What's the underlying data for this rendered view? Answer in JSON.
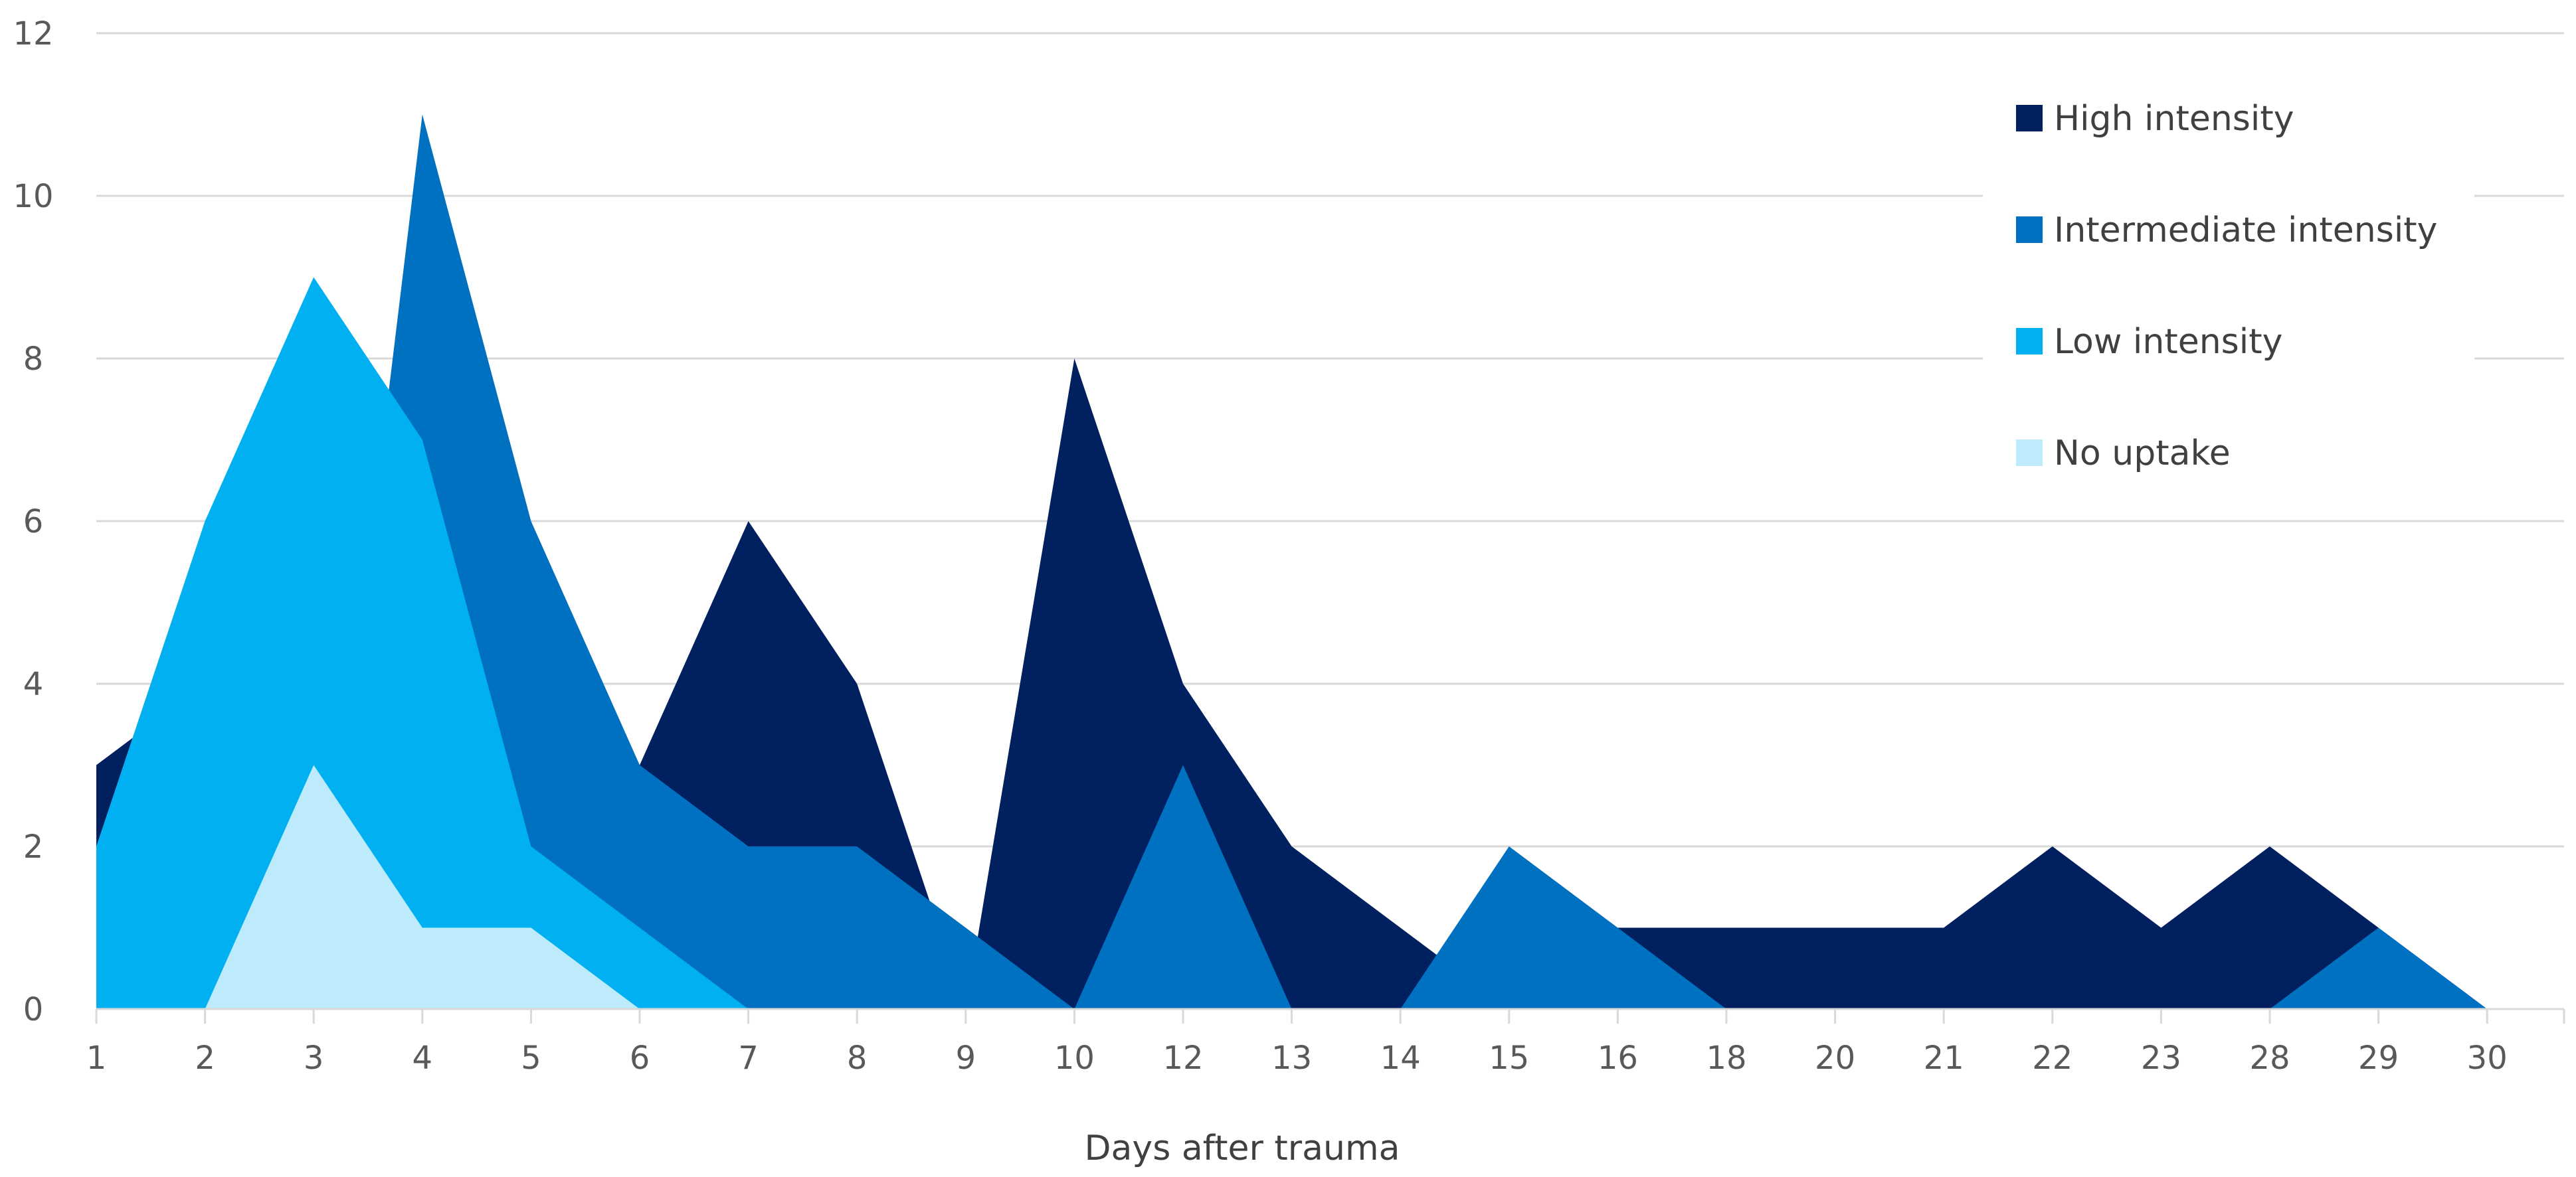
{
  "chart_data": {
    "type": "area",
    "title": "",
    "xlabel": "Days after trauma",
    "ylabel": "",
    "ylim": [
      0,
      12
    ],
    "yticks": [
      "0",
      "2",
      "4",
      "6",
      "8",
      "10",
      "12"
    ],
    "categories": [
      "1",
      "2",
      "3",
      "4",
      "5",
      "6",
      "7",
      "8",
      "9",
      "10",
      "12",
      "13",
      "14",
      "15",
      "16",
      "18",
      "20",
      "21",
      "22",
      "23",
      "28",
      "29",
      "30"
    ],
    "grid": true,
    "legend_position": "top-right",
    "series": [
      {
        "name": "High intensity",
        "color": "#002060",
        "values": [
          3,
          4,
          0,
          0,
          0,
          3,
          6,
          4,
          0,
          8,
          4,
          2,
          1,
          0,
          1,
          1,
          1,
          1,
          2,
          1,
          2,
          1,
          0
        ]
      },
      {
        "name": "Intermediate intensity",
        "color": "#0070C0",
        "values": [
          0,
          0,
          0,
          11,
          6,
          3,
          2,
          2,
          1,
          0,
          3,
          0,
          0,
          2,
          1,
          0,
          0,
          0,
          0,
          0,
          0,
          1,
          0
        ]
      },
      {
        "name": "Low intensity",
        "color": "#00B0F0",
        "values": [
          2,
          6,
          9,
          7,
          2,
          1,
          0,
          0,
          0,
          0,
          0,
          0,
          0,
          0,
          0,
          0,
          0,
          0,
          0,
          0,
          0,
          0,
          0
        ]
      },
      {
        "name": "No uptake",
        "color": "#BDEBFB",
        "values": [
          0,
          0,
          3,
          1,
          1,
          0,
          0,
          0,
          0,
          0,
          0,
          0,
          0,
          0,
          0,
          0,
          0,
          0,
          0,
          0,
          0,
          0,
          0
        ]
      }
    ]
  }
}
